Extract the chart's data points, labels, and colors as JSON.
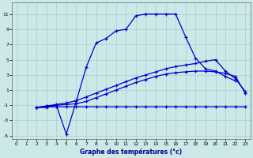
{
  "title": "Graphe des températures (°c)",
  "background_color": "#cce8e8",
  "grid_color": "#aacfcf",
  "line_color": "#0000cc",
  "x_hours": [
    0,
    1,
    2,
    3,
    4,
    5,
    6,
    7,
    8,
    9,
    10,
    11,
    12,
    13,
    14,
    15,
    16,
    17,
    18,
    19,
    20,
    21,
    22,
    23
  ],
  "curve_main": [
    null,
    null,
    -1.3,
    -1.3,
    -1.0,
    -4.8,
    -0.5,
    4.0,
    7.2,
    7.8,
    8.8,
    9.0,
    10.8,
    11.0,
    11.0,
    11.0,
    11.0,
    8.0,
    5.2,
    3.8,
    3.5,
    2.8,
    2.2,
    null
  ],
  "curve_diag1": [
    null,
    null,
    -1.3,
    -1.1,
    -0.9,
    -0.7,
    -0.4,
    0.1,
    0.6,
    1.1,
    1.6,
    2.1,
    2.6,
    3.0,
    3.4,
    3.8,
    4.1,
    4.3,
    4.5,
    4.8,
    5.0,
    3.5,
    2.5,
    0.8
  ],
  "curve_flat": [
    null,
    null,
    -1.3,
    -1.2,
    -1.2,
    -1.2,
    -1.2,
    -1.2,
    -1.2,
    -1.2,
    -1.2,
    -1.2,
    -1.2,
    -1.2,
    -1.2,
    -1.2,
    -1.2,
    -1.2,
    -1.2,
    -1.2,
    -1.2,
    -1.2,
    -1.2,
    -1.2
  ],
  "curve_avg": [
    null,
    null,
    -1.3,
    -1.1,
    -1.0,
    -0.9,
    -0.8,
    -0.5,
    0.0,
    0.5,
    1.0,
    1.5,
    2.0,
    2.4,
    2.8,
    3.1,
    3.3,
    3.4,
    3.5,
    3.5,
    3.4,
    3.2,
    2.8,
    0.6
  ],
  "ylim": [
    -5.5,
    12.5
  ],
  "xlim": [
    -0.5,
    23.5
  ],
  "yticks": [
    -5,
    -3,
    -1,
    1,
    3,
    5,
    7,
    9,
    11
  ],
  "xticks": [
    0,
    1,
    2,
    3,
    4,
    5,
    6,
    7,
    8,
    9,
    10,
    11,
    12,
    13,
    14,
    15,
    16,
    17,
    18,
    19,
    20,
    21,
    22,
    23
  ]
}
